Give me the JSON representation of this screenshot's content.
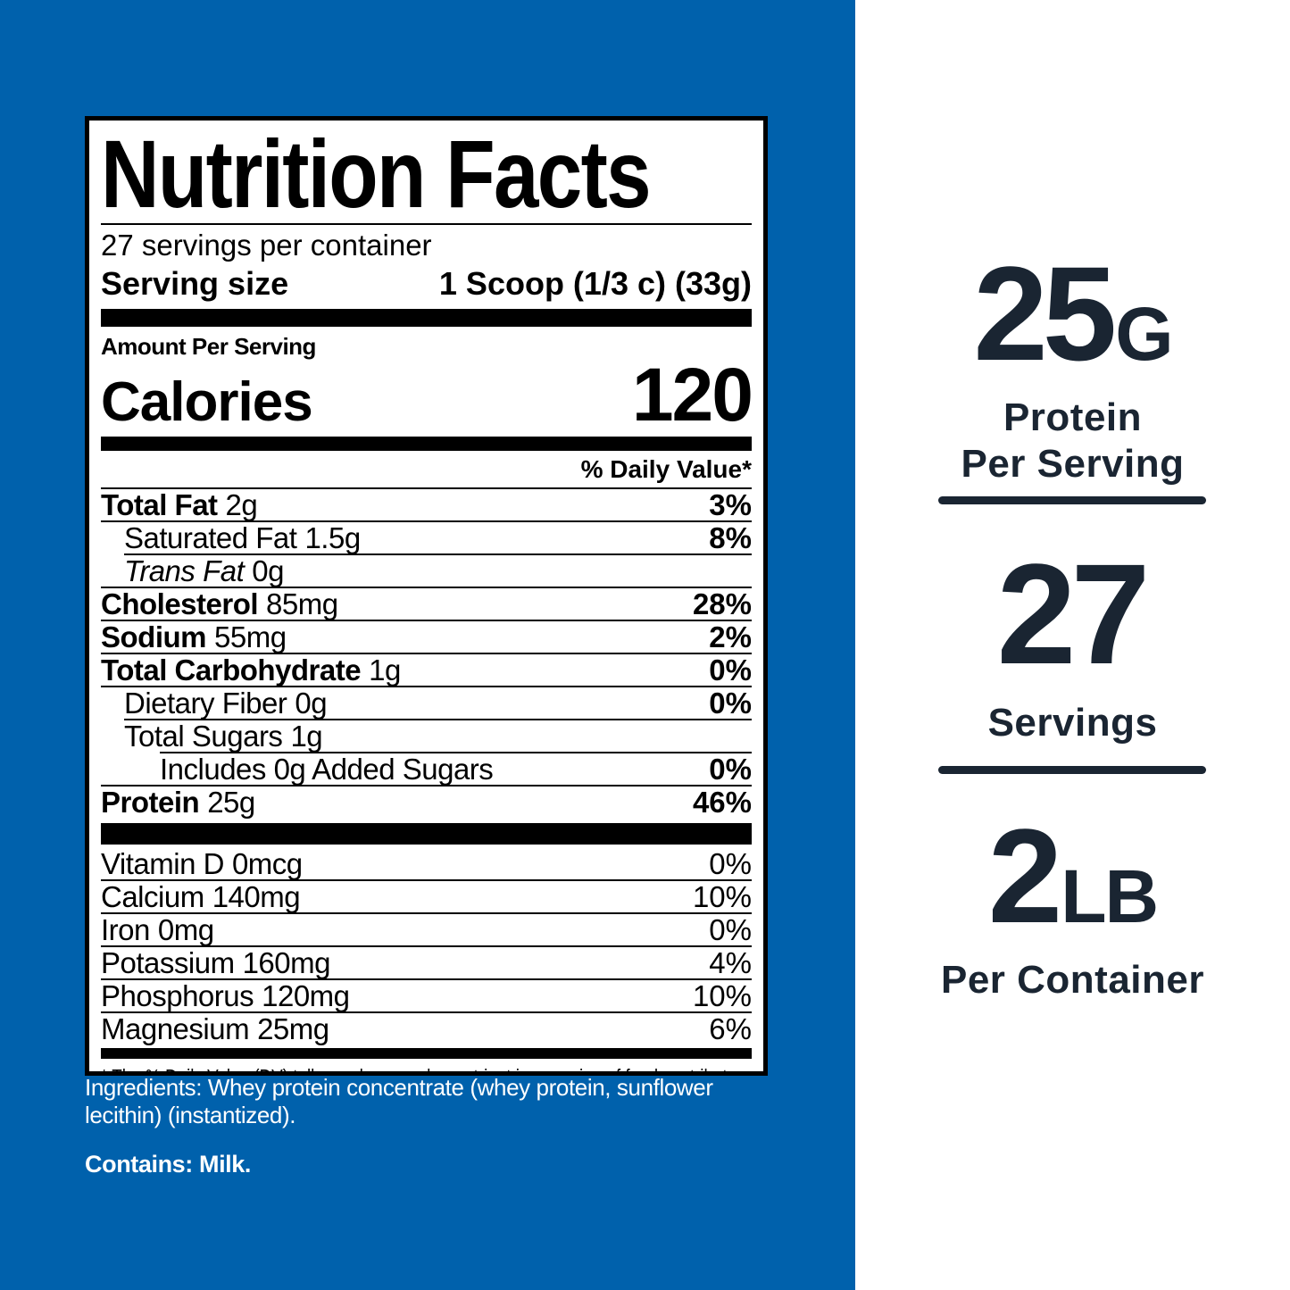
{
  "colors": {
    "background_blue": "#0061AC",
    "stat_navy": "#1A2532",
    "label_bg": "#FFFFFF",
    "label_ink": "#000000"
  },
  "label": {
    "title": "Nutrition Facts",
    "servings_per_container": "27 servings per container",
    "serving_size_label": "Serving size",
    "serving_size_value": "1 Scoop (1/3 c) (33g)",
    "amount_per_serving": "Amount Per Serving",
    "calories_label": "Calories",
    "calories_value": "120",
    "daily_value_header": "% Daily Value*",
    "rows": [
      {
        "name": "Total Fat",
        "amount": "2g",
        "dv": "3%"
      },
      {
        "name": "Saturated Fat",
        "amount": "1.5g",
        "dv": "8%"
      },
      {
        "name": "Trans Fat",
        "amount": "0g",
        "dv": ""
      },
      {
        "name": "Cholesterol",
        "amount": "85mg",
        "dv": "28%"
      },
      {
        "name": "Sodium",
        "amount": "55mg",
        "dv": "2%"
      },
      {
        "name": "Total Carbohydrate",
        "amount": "1g",
        "dv": "0%"
      },
      {
        "name": "Dietary Fiber",
        "amount": "0g",
        "dv": "0%"
      },
      {
        "name": "Total Sugars",
        "amount": "1g",
        "dv": ""
      },
      {
        "name": "Includes 0g Added Sugars",
        "amount": "",
        "dv": "0%"
      },
      {
        "name": "Protein",
        "amount": "25g",
        "dv": "46%"
      }
    ],
    "micros": [
      {
        "name": "Vitamin D",
        "amount": "0mcg",
        "dv": "0%"
      },
      {
        "name": "Calcium",
        "amount": "140mg",
        "dv": "10%"
      },
      {
        "name": "Iron",
        "amount": "0mg",
        "dv": "0%"
      },
      {
        "name": "Potassium",
        "amount": "160mg",
        "dv": "4%"
      },
      {
        "name": "Phosphorus",
        "amount": "120mg",
        "dv": "10%"
      },
      {
        "name": "Magnesium",
        "amount": "25mg",
        "dv": "6%"
      }
    ],
    "footnote": "* The % Daily Value (DV) tells you how much a nutrient in a serving of food contributes to a daily diet. 2,000 calories a day is used for general nutrition advice."
  },
  "ingredients": {
    "text": "Ingredients: Whey protein concentrate (whey protein, sunflower lecithin) (instantized).",
    "contains": "Contains: Milk."
  },
  "stats": [
    {
      "value": "25",
      "unit": "G",
      "caption_line1": "Protein",
      "caption_line2": "Per Serving"
    },
    {
      "value": "27",
      "unit": "",
      "caption_line1": "Servings",
      "caption_line2": ""
    },
    {
      "value": "2",
      "unit": "LB",
      "caption_line1": "Per Container",
      "caption_line2": ""
    }
  ]
}
